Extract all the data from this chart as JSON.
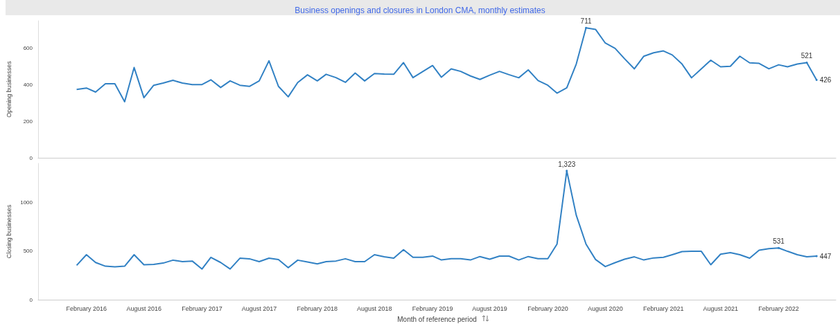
{
  "chart_data": [
    {
      "type": "line",
      "title": "Business openings and closures in London CMA, monthly estimates",
      "ylabel": "Opening businesses",
      "x": [
        "2016-01",
        "2016-02",
        "2016-03",
        "2016-04",
        "2016-05",
        "2016-06",
        "2016-07",
        "2016-08",
        "2016-09",
        "2016-10",
        "2016-11",
        "2016-12",
        "2017-01",
        "2017-02",
        "2017-03",
        "2017-04",
        "2017-05",
        "2017-06",
        "2017-07",
        "2017-08",
        "2017-09",
        "2017-10",
        "2017-11",
        "2017-12",
        "2018-01",
        "2018-02",
        "2018-03",
        "2018-04",
        "2018-05",
        "2018-06",
        "2018-07",
        "2018-08",
        "2018-09",
        "2018-10",
        "2018-11",
        "2018-12",
        "2019-01",
        "2019-02",
        "2019-03",
        "2019-04",
        "2019-05",
        "2019-06",
        "2019-07",
        "2019-08",
        "2019-09",
        "2019-10",
        "2019-11",
        "2019-12",
        "2020-01",
        "2020-02",
        "2020-03",
        "2020-04",
        "2020-05",
        "2020-06",
        "2020-07",
        "2020-08",
        "2020-09",
        "2020-10",
        "2020-11",
        "2020-12",
        "2021-01",
        "2021-02",
        "2021-03",
        "2021-04",
        "2021-05",
        "2021-06",
        "2021-07",
        "2021-08",
        "2021-09",
        "2021-10",
        "2021-11",
        "2021-12",
        "2022-01",
        "2022-02",
        "2022-03",
        "2022-04",
        "2022-05",
        "2022-06"
      ],
      "series": [
        {
          "color": "#3181c4",
          "values": [
            374,
            382,
            360,
            405,
            405,
            307,
            494,
            329,
            397,
            409,
            424,
            409,
            401,
            401,
            427,
            385,
            421,
            397,
            391,
            421,
            531,
            391,
            334,
            412,
            454,
            421,
            457,
            439,
            413,
            464,
            421,
            461,
            458,
            457,
            521,
            439,
            472,
            505,
            441,
            487,
            473,
            448,
            429,
            452,
            473,
            455,
            438,
            481,
            423,
            397,
            354,
            383,
            513,
            711,
            703,
            628,
            599,
            542,
            487,
            556,
            575,
            585,
            563,
            513,
            438,
            487,
            534,
            498,
            501,
            556,
            520,
            517,
            487,
            509,
            498,
            513,
            521,
            426
          ],
          "value_labels": [
            null,
            null,
            null,
            null,
            null,
            null,
            null,
            null,
            null,
            null,
            null,
            null,
            null,
            null,
            null,
            null,
            null,
            null,
            null,
            null,
            null,
            null,
            null,
            null,
            null,
            null,
            null,
            null,
            null,
            null,
            null,
            null,
            null,
            null,
            null,
            null,
            null,
            null,
            null,
            null,
            null,
            null,
            null,
            null,
            null,
            null,
            null,
            null,
            null,
            null,
            null,
            null,
            null,
            "711",
            null,
            null,
            null,
            null,
            null,
            null,
            null,
            null,
            null,
            null,
            null,
            null,
            null,
            null,
            null,
            null,
            null,
            null,
            null,
            null,
            null,
            null,
            "521",
            "426"
          ]
        }
      ],
      "xlim": [
        "2015-09",
        "2022-08"
      ],
      "ylim": [
        0,
        750
      ],
      "yticks": [
        0,
        200,
        400,
        600
      ],
      "tick_labels": "y",
      "grid": false
    },
    {
      "type": "line",
      "ylabel": "Closing businesses",
      "xlabel": "Month of reference period",
      "x": [
        "2016-01",
        "2016-02",
        "2016-03",
        "2016-04",
        "2016-05",
        "2016-06",
        "2016-07",
        "2016-08",
        "2016-09",
        "2016-10",
        "2016-11",
        "2016-12",
        "2017-01",
        "2017-02",
        "2017-03",
        "2017-04",
        "2017-05",
        "2017-06",
        "2017-07",
        "2017-08",
        "2017-09",
        "2017-10",
        "2017-11",
        "2017-12",
        "2018-01",
        "2018-02",
        "2018-03",
        "2018-04",
        "2018-05",
        "2018-06",
        "2018-07",
        "2018-08",
        "2018-09",
        "2018-10",
        "2018-11",
        "2018-12",
        "2019-01",
        "2019-02",
        "2019-03",
        "2019-04",
        "2019-05",
        "2019-06",
        "2019-07",
        "2019-08",
        "2019-09",
        "2019-10",
        "2019-11",
        "2019-12",
        "2020-01",
        "2020-02",
        "2020-03",
        "2020-04",
        "2020-05",
        "2020-06",
        "2020-07",
        "2020-08",
        "2020-09",
        "2020-10",
        "2020-11",
        "2020-12",
        "2021-01",
        "2021-02",
        "2021-03",
        "2021-04",
        "2021-05",
        "2021-06",
        "2021-07",
        "2021-08",
        "2021-09",
        "2021-10",
        "2021-11",
        "2021-12",
        "2022-01",
        "2022-02",
        "2022-03",
        "2022-04",
        "2022-05",
        "2022-06"
      ],
      "series": [
        {
          "color": "#3181c4",
          "values": [
            353,
            462,
            382,
            344,
            338,
            344,
            462,
            359,
            362,
            376,
            406,
            391,
            397,
            315,
            435,
            382,
            315,
            426,
            420,
            391,
            426,
            412,
            329,
            406,
            388,
            368,
            391,
            397,
            420,
            391,
            391,
            462,
            441,
            426,
            514,
            435,
            435,
            448,
            408,
            421,
            421,
            408,
            443,
            416,
            448,
            448,
            408,
            443,
            421,
            421,
            570,
            1323,
            868,
            570,
            413,
            340,
            380,
            416,
            440,
            408,
            429,
            435,
            462,
            494,
            497,
            497,
            359,
            467,
            483,
            462,
            426,
            508,
            524,
            531,
            497,
            462,
            440,
            447
          ],
          "value_labels": [
            null,
            null,
            null,
            null,
            null,
            null,
            null,
            null,
            null,
            null,
            null,
            null,
            null,
            null,
            null,
            null,
            null,
            null,
            null,
            null,
            null,
            null,
            null,
            null,
            null,
            null,
            null,
            null,
            null,
            null,
            null,
            null,
            null,
            null,
            null,
            null,
            null,
            null,
            null,
            null,
            null,
            null,
            null,
            null,
            null,
            null,
            null,
            null,
            null,
            null,
            null,
            "1,323",
            null,
            null,
            null,
            null,
            null,
            null,
            null,
            null,
            null,
            null,
            null,
            null,
            null,
            null,
            null,
            null,
            null,
            null,
            null,
            null,
            null,
            "531",
            null,
            null,
            null,
            "447"
          ]
        }
      ],
      "xlim": [
        "2015-09",
        "2022-08"
      ],
      "xticks": [
        {
          "value": "2016-02",
          "label": "February 2016"
        },
        {
          "value": "2016-08",
          "label": "August 2016"
        },
        {
          "value": "2017-02",
          "label": "February 2017"
        },
        {
          "value": "2017-08",
          "label": "August 2017"
        },
        {
          "value": "2018-02",
          "label": "February 2018"
        },
        {
          "value": "2018-08",
          "label": "August 2018"
        },
        {
          "value": "2019-02",
          "label": "February 2019"
        },
        {
          "value": "2019-08",
          "label": "August 2019"
        },
        {
          "value": "2020-02",
          "label": "February 2020"
        },
        {
          "value": "2020-08",
          "label": "August 2020"
        },
        {
          "value": "2021-02",
          "label": "February 2021"
        },
        {
          "value": "2021-08",
          "label": "August 2021"
        },
        {
          "value": "2022-02",
          "label": "February 2022"
        }
      ],
      "ylim": [
        0,
        1400
      ],
      "yticks": [
        0,
        500,
        1000
      ],
      "grid": false
    }
  ]
}
